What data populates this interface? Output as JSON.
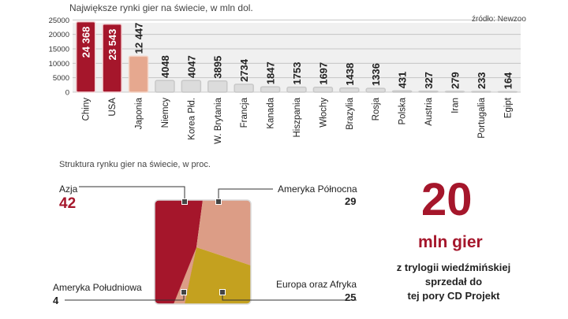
{
  "bar_title": "Największe rynki  gier na świecie, w mln dol.",
  "source": "źródło: Newzoo",
  "pie_title": "Struktura rynku gier na świecie, w proc.",
  "highlight": {
    "number": "20",
    "unit": "mln gier",
    "caption": [
      "z trylogii wiedźmińskiej",
      "sprzedał do",
      "tej pory CD Projekt"
    ]
  },
  "colors": {
    "accent": "#a5162b",
    "accent_light": "#e6a88f",
    "pink": "#dc9d86",
    "gold": "#c4a11f",
    "bar_grey": "#dcdcdc"
  },
  "chart_data": [
    {
      "type": "bar",
      "title": "Największe rynki  gier na świecie, w mln dol.",
      "categories": [
        "Chiny",
        "USA",
        "Japonia",
        "Niemcy",
        "Korea Płd.",
        "W. Brytania",
        "Francja",
        "Kanada",
        "Hiszpania",
        "Włochy",
        "Brazylia",
        "Rosja",
        "Polska",
        "Austria",
        "Iran",
        "Portugalia",
        "Egipt"
      ],
      "values": [
        24368,
        23543,
        12447,
        4048,
        4047,
        3895,
        2734,
        1847,
        1753,
        1697,
        1438,
        1336,
        431,
        327,
        279,
        233,
        164
      ],
      "value_labels": [
        "24 368",
        "23 543",
        "12 447",
        "4048",
        "4047",
        "3895",
        "2734",
        "1847",
        "1753",
        "1697",
        "1438",
        "1336",
        "431",
        "327",
        "279",
        "233",
        "164"
      ],
      "yticks": [
        0,
        5000,
        10000,
        15000,
        20000,
        25000
      ],
      "ytick_labels": [
        "0",
        "5000",
        "10000",
        "15000",
        "20000",
        "25000"
      ],
      "ylim": [
        0,
        27000
      ],
      "grid": true,
      "highlight_bars": [
        "Chiny",
        "USA"
      ],
      "secondary_highlight": [
        "Japonia"
      ]
    },
    {
      "type": "pie",
      "title": "Struktura rynku gier na świecie, w proc.",
      "shape": "square",
      "segments": [
        {
          "name": "Azja",
          "value": 42,
          "color": "#a5162b"
        },
        {
          "name": "Ameryka Północna",
          "value": 29,
          "color": "#dc9d86"
        },
        {
          "name": "Europa oraz Afryka",
          "value": 25,
          "color": "#c4a11f"
        },
        {
          "name": "Ameryka Południowa",
          "value": 4,
          "color": "#dc9d86"
        }
      ]
    }
  ]
}
